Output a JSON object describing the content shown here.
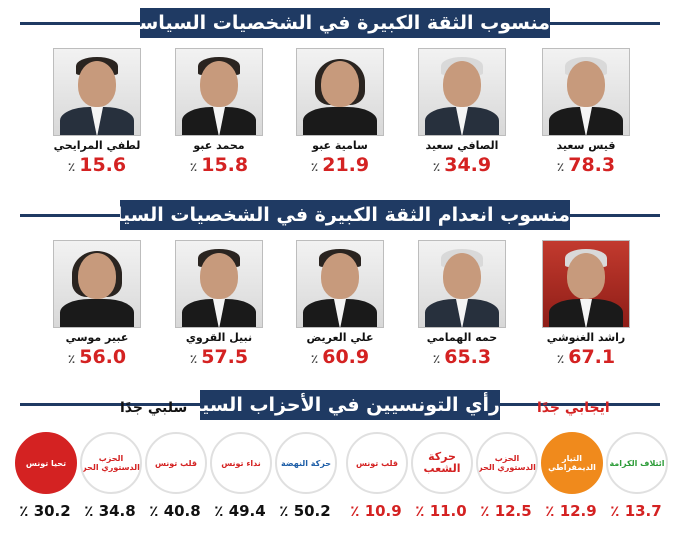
{
  "trust": {
    "title": "منسوب الثقة الكبيرة في الشخصيات السياسية",
    "people": [
      {
        "name": "قيس سعيد",
        "value": "78.3",
        "unit": "٪"
      },
      {
        "name": "الصافي سعيد",
        "value": "34.9",
        "unit": "٪"
      },
      {
        "name": "سامية عبو",
        "value": "21.9",
        "unit": "٪"
      },
      {
        "name": "محمد عبو",
        "value": "15.8",
        "unit": "٪"
      },
      {
        "name": "لطفي المرايحي",
        "value": "15.6",
        "unit": "٪"
      }
    ]
  },
  "distrust": {
    "title": "منسوب انعدام الثقة الكبيرة في الشخصيات السياسية",
    "people": [
      {
        "name": "راشد الغنوشي",
        "value": "67.1",
        "unit": "٪"
      },
      {
        "name": "حمه الهمامي",
        "value": "65.3",
        "unit": "٪"
      },
      {
        "name": "علي العريض",
        "value": "60.9",
        "unit": "٪"
      },
      {
        "name": "نبيل القروي",
        "value": "57.5",
        "unit": "٪"
      },
      {
        "name": "عبير موسي",
        "value": "56.0",
        "unit": "٪"
      }
    ]
  },
  "parties": {
    "title": "رأي التونسيين في الأحزاب السياسية",
    "positive_label": "ايجابي جدًا",
    "negative_label": "سلبي جدًا",
    "positive": [
      {
        "logo_text": "ائتلاف الكرامة",
        "value": "13.7",
        "unit": "٪",
        "color": "#2e9d3a"
      },
      {
        "logo_text": "التيار الديمقراطي",
        "value": "12.9",
        "unit": "٪",
        "color": "#f08a1c"
      },
      {
        "logo_text": "الحزب الدستوري الحر",
        "value": "12.5",
        "unit": "٪",
        "color": "#d42222"
      },
      {
        "logo_text": "حركة الشعب",
        "value": "11.0",
        "unit": "٪",
        "color": "#d42222"
      },
      {
        "logo_text": "قلب تونس",
        "value": "10.9",
        "unit": "٪",
        "color": "#d42222"
      }
    ],
    "negative": [
      {
        "logo_text": "حركة النهضة",
        "value": "50.2",
        "unit": "٪",
        "color": "#1f5fa8"
      },
      {
        "logo_text": "نداء تونس",
        "value": "49.4",
        "unit": "٪",
        "color": "#d42222"
      },
      {
        "logo_text": "قلب تونس",
        "value": "40.8",
        "unit": "٪",
        "color": "#d42222"
      },
      {
        "logo_text": "الحزب الدستوري الحر",
        "value": "34.8",
        "unit": "٪",
        "color": "#d42222"
      },
      {
        "logo_text": "تحيا تونس",
        "value": "30.2",
        "unit": "٪",
        "color": "#d42222"
      }
    ]
  }
}
